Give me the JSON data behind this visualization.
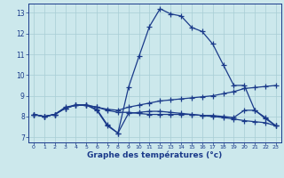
{
  "bg_color": "#cce8ec",
  "line_color": "#1a3a8a",
  "grid_color": "#a8cdd4",
  "xlabel": "Graphe des températures (°c)",
  "xlim": [
    -0.5,
    23.5
  ],
  "ylim": [
    6.75,
    13.45
  ],
  "yticks": [
    7,
    8,
    9,
    10,
    11,
    12,
    13
  ],
  "xticks": [
    0,
    1,
    2,
    3,
    4,
    5,
    6,
    7,
    8,
    9,
    10,
    11,
    12,
    13,
    14,
    15,
    16,
    17,
    18,
    19,
    20,
    21,
    22,
    23
  ],
  "series1": {
    "x": [
      0,
      1,
      2,
      3,
      4,
      5,
      6,
      7,
      8,
      9,
      10,
      11,
      12,
      13,
      14,
      15,
      16,
      17,
      18,
      19,
      20,
      21,
      22,
      23
    ],
    "y": [
      8.1,
      8.0,
      8.1,
      8.4,
      8.55,
      8.55,
      8.3,
      7.55,
      7.2,
      9.4,
      10.9,
      12.35,
      13.2,
      12.95,
      12.85,
      12.3,
      12.1,
      11.5,
      10.5,
      9.5,
      9.5,
      8.3,
      7.9,
      7.55
    ]
  },
  "series2": {
    "x": [
      0,
      1,
      2,
      3,
      4,
      5,
      6,
      7,
      8,
      9,
      10,
      11,
      12,
      13,
      14,
      15,
      16,
      17,
      18,
      19,
      20,
      21,
      22,
      23
    ],
    "y": [
      8.1,
      8.0,
      8.1,
      8.45,
      8.55,
      8.55,
      8.45,
      8.35,
      8.3,
      8.45,
      8.55,
      8.65,
      8.75,
      8.8,
      8.85,
      8.9,
      8.95,
      9.0,
      9.1,
      9.2,
      9.35,
      9.4,
      9.45,
      9.5
    ]
  },
  "series3": {
    "x": [
      0,
      1,
      2,
      3,
      4,
      5,
      6,
      7,
      8,
      9,
      10,
      11,
      12,
      13,
      14,
      15,
      16,
      17,
      18,
      19,
      20,
      21,
      22,
      23
    ],
    "y": [
      8.1,
      8.0,
      8.1,
      8.4,
      8.55,
      8.55,
      8.45,
      8.3,
      8.2,
      8.2,
      8.15,
      8.1,
      8.1,
      8.1,
      8.1,
      8.1,
      8.05,
      8.05,
      8.0,
      7.95,
      8.3,
      8.3,
      7.95,
      7.55
    ]
  },
  "series4": {
    "x": [
      0,
      1,
      2,
      3,
      4,
      5,
      6,
      7,
      8,
      9,
      10,
      11,
      12,
      13,
      14,
      15,
      16,
      17,
      18,
      19,
      20,
      21,
      22,
      23
    ],
    "y": [
      8.1,
      8.0,
      8.1,
      8.4,
      8.55,
      8.55,
      8.35,
      7.6,
      7.2,
      8.15,
      8.2,
      8.25,
      8.25,
      8.2,
      8.15,
      8.1,
      8.05,
      8.0,
      7.95,
      7.88,
      7.8,
      7.75,
      7.7,
      7.55
    ]
  }
}
